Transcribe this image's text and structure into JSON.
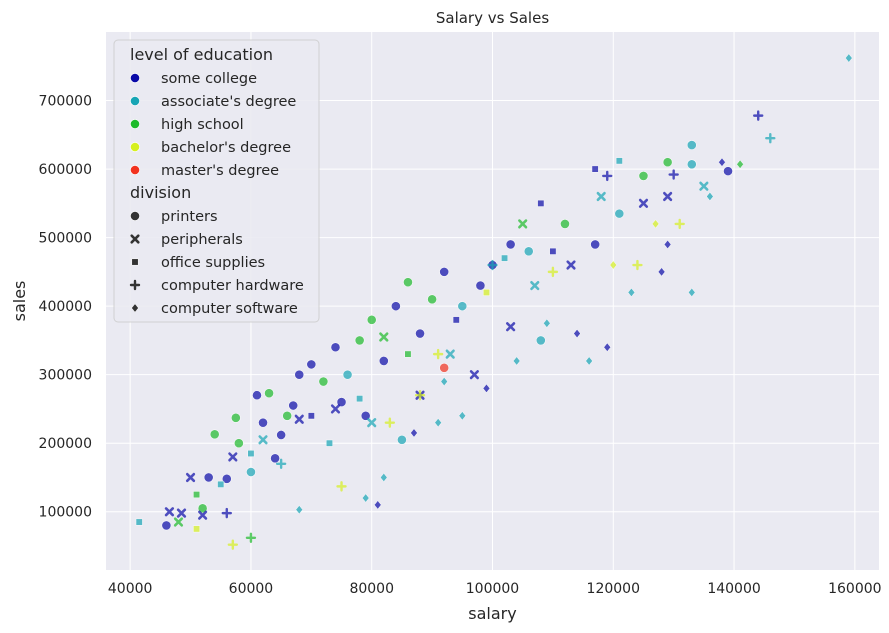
{
  "chart_data": {
    "type": "scatter",
    "title": "Salary vs Sales",
    "xlabel": "salary",
    "ylabel": "sales",
    "xlim": [
      36000,
      164000
    ],
    "ylim": [
      15000,
      800000
    ],
    "xticks": [
      40000,
      60000,
      80000,
      100000,
      120000,
      140000,
      160000
    ],
    "yticks": [
      100000,
      200000,
      300000,
      400000,
      500000,
      600000,
      700000
    ],
    "grid": true,
    "legend_placement": "top-left",
    "legend": {
      "hue_title": "level of education",
      "hue_entries": [
        {
          "label": "some college",
          "color": "#0a0aa8"
        },
        {
          "label": "associate's degree",
          "color": "#17a5b5"
        },
        {
          "label": "high school",
          "color": "#1dbb2a"
        },
        {
          "label": "bachelor's degree",
          "color": "#d6f01f"
        },
        {
          "label": "master's degree",
          "color": "#f2321f"
        }
      ],
      "style_title": "division",
      "style_entries": [
        {
          "label": "printers",
          "marker": "circle"
        },
        {
          "label": "peripherals",
          "marker": "x"
        },
        {
          "label": "office supplies",
          "marker": "square"
        },
        {
          "label": "computer hardware",
          "marker": "plus"
        },
        {
          "label": "computer software",
          "marker": "diamond"
        }
      ]
    },
    "points": [
      [
        46000,
        80000,
        "some college",
        "printers"
      ],
      [
        46500,
        100000,
        "some college",
        "peripherals"
      ],
      [
        41500,
        85000,
        "associate's degree",
        "office supplies"
      ],
      [
        48500,
        98000,
        "some college",
        "peripherals"
      ],
      [
        51000,
        75000,
        "bachelor's degree",
        "office supplies"
      ],
      [
        52000,
        105000,
        "high school",
        "printers"
      ],
      [
        53000,
        150000,
        "some college",
        "printers"
      ],
      [
        54000,
        213000,
        "high school",
        "printers"
      ],
      [
        56000,
        148000,
        "some college",
        "printers"
      ],
      [
        57500,
        237000,
        "high school",
        "printers"
      ],
      [
        58000,
        200000,
        "high school",
        "printers"
      ],
      [
        60000,
        158000,
        "associate's degree",
        "printers"
      ],
      [
        61000,
        270000,
        "some college",
        "printers"
      ],
      [
        63000,
        273000,
        "high school",
        "printers"
      ],
      [
        62000,
        230000,
        "some college",
        "printers"
      ],
      [
        65000,
        212000,
        "some college",
        "printers"
      ],
      [
        64000,
        178000,
        "some college",
        "printers"
      ],
      [
        67000,
        255000,
        "some college",
        "printers"
      ],
      [
        66000,
        240000,
        "high school",
        "printers"
      ],
      [
        68000,
        300000,
        "some college",
        "printers"
      ],
      [
        70000,
        315000,
        "some college",
        "printers"
      ],
      [
        72000,
        290000,
        "high school",
        "printers"
      ],
      [
        74000,
        340000,
        "some college",
        "printers"
      ],
      [
        75000,
        260000,
        "some college",
        "printers"
      ],
      [
        76000,
        300000,
        "associate's degree",
        "printers"
      ],
      [
        78000,
        350000,
        "high school",
        "printers"
      ],
      [
        80000,
        380000,
        "high school",
        "printers"
      ],
      [
        82000,
        320000,
        "some college",
        "printers"
      ],
      [
        84000,
        400000,
        "some college",
        "printers"
      ],
      [
        86000,
        435000,
        "high school",
        "printers"
      ],
      [
        88000,
        360000,
        "some college",
        "printers"
      ],
      [
        90000,
        410000,
        "high school",
        "printers"
      ],
      [
        92000,
        450000,
        "some college",
        "printers"
      ],
      [
        95000,
        400000,
        "associate's degree",
        "printers"
      ],
      [
        98000,
        430000,
        "some college",
        "printers"
      ],
      [
        100000,
        460000,
        "some college",
        "printers"
      ],
      [
        103000,
        490000,
        "some college",
        "printers"
      ],
      [
        106000,
        480000,
        "associate's degree",
        "printers"
      ],
      [
        108000,
        350000,
        "associate's degree",
        "printers"
      ],
      [
        112000,
        520000,
        "high school",
        "printers"
      ],
      [
        117000,
        490000,
        "some college",
        "printers"
      ],
      [
        121000,
        535000,
        "associate's degree",
        "printers"
      ],
      [
        125000,
        590000,
        "high school",
        "printers"
      ],
      [
        129000,
        610000,
        "high school",
        "printers"
      ],
      [
        133000,
        635000,
        "associate's degree",
        "printers"
      ],
      [
        139000,
        597000,
        "some college",
        "printers"
      ],
      [
        133000,
        607000,
        "associate's degree",
        "printers"
      ],
      [
        85000,
        205000,
        "associate's degree",
        "printers"
      ],
      [
        92000,
        310000,
        "master's degree",
        "printers"
      ],
      [
        79000,
        240000,
        "some college",
        "printers"
      ],
      [
        51000,
        125000,
        "high school",
        "office supplies"
      ],
      [
        55000,
        140000,
        "associate's degree",
        "office supplies"
      ],
      [
        60000,
        185000,
        "associate's degree",
        "office supplies"
      ],
      [
        70000,
        240000,
        "some college",
        "office supplies"
      ],
      [
        78000,
        265000,
        "associate's degree",
        "office supplies"
      ],
      [
        86000,
        330000,
        "high school",
        "office supplies"
      ],
      [
        94000,
        380000,
        "some college",
        "office supplies"
      ],
      [
        102000,
        470000,
        "associate's degree",
        "office supplies"
      ],
      [
        110000,
        480000,
        "some college",
        "office supplies"
      ],
      [
        117000,
        600000,
        "some college",
        "office supplies"
      ],
      [
        121000,
        612000,
        "associate's degree",
        "office supplies"
      ],
      [
        108000,
        550000,
        "some college",
        "office supplies"
      ],
      [
        73000,
        200000,
        "associate's degree",
        "office supplies"
      ],
      [
        99000,
        420000,
        "bachelor's degree",
        "office supplies"
      ],
      [
        50000,
        150000,
        "some college",
        "peripherals"
      ],
      [
        57000,
        180000,
        "some college",
        "peripherals"
      ],
      [
        62000,
        205000,
        "associate's degree",
        "peripherals"
      ],
      [
        68000,
        235000,
        "some college",
        "peripherals"
      ],
      [
        74000,
        250000,
        "some college",
        "peripherals"
      ],
      [
        80000,
        230000,
        "associate's degree",
        "peripherals"
      ],
      [
        88000,
        270000,
        "some college",
        "peripherals"
      ],
      [
        93000,
        330000,
        "associate's degree",
        "peripherals"
      ],
      [
        97000,
        300000,
        "some college",
        "peripherals"
      ],
      [
        103000,
        370000,
        "some college",
        "peripherals"
      ],
      [
        107000,
        430000,
        "associate's degree",
        "peripherals"
      ],
      [
        113000,
        460000,
        "some college",
        "peripherals"
      ],
      [
        118000,
        560000,
        "associate's degree",
        "peripherals"
      ],
      [
        125000,
        550000,
        "some college",
        "peripherals"
      ],
      [
        129000,
        560000,
        "some college",
        "peripherals"
      ],
      [
        135000,
        575000,
        "associate's degree",
        "peripherals"
      ],
      [
        82000,
        355000,
        "high school",
        "peripherals"
      ],
      [
        105000,
        520000,
        "high school",
        "peripherals"
      ],
      [
        48000,
        85000,
        "high school",
        "peripherals"
      ],
      [
        52000,
        95000,
        "some college",
        "peripherals"
      ],
      [
        60000,
        62000,
        "high school",
        "computer hardware"
      ],
      [
        57000,
        52000,
        "bachelor's degree",
        "computer hardware"
      ],
      [
        56000,
        98000,
        "some college",
        "computer hardware"
      ],
      [
        65000,
        170000,
        "associate's degree",
        "computer hardware"
      ],
      [
        75000,
        137000,
        "bachelor's degree",
        "computer hardware"
      ],
      [
        83000,
        230000,
        "bachelor's degree",
        "computer hardware"
      ],
      [
        91000,
        330000,
        "bachelor's degree",
        "computer hardware"
      ],
      [
        100000,
        460000,
        "associate's degree",
        "computer hardware"
      ],
      [
        110000,
        450000,
        "bachelor's degree",
        "computer hardware"
      ],
      [
        119000,
        590000,
        "some college",
        "computer hardware"
      ],
      [
        124000,
        460000,
        "bachelor's degree",
        "computer hardware"
      ],
      [
        131000,
        520000,
        "bachelor's degree",
        "computer hardware"
      ],
      [
        144000,
        678000,
        "some college",
        "computer hardware"
      ],
      [
        146000,
        645000,
        "associate's degree",
        "computer hardware"
      ],
      [
        130000,
        592000,
        "some college",
        "computer hardware"
      ],
      [
        88000,
        270000,
        "bachelor's degree",
        "computer hardware"
      ],
      [
        68000,
        103000,
        "associate's degree",
        "computer software"
      ],
      [
        79000,
        120000,
        "associate's degree",
        "computer software"
      ],
      [
        81000,
        110000,
        "some college",
        "computer software"
      ],
      [
        82000,
        150000,
        "associate's degree",
        "computer software"
      ],
      [
        87000,
        215000,
        "some college",
        "computer software"
      ],
      [
        91000,
        230000,
        "associate's degree",
        "computer software"
      ],
      [
        95000,
        240000,
        "associate's degree",
        "computer software"
      ],
      [
        99000,
        280000,
        "some college",
        "computer software"
      ],
      [
        104000,
        320000,
        "associate's degree",
        "computer software"
      ],
      [
        109000,
        375000,
        "associate's degree",
        "computer software"
      ],
      [
        114000,
        360000,
        "some college",
        "computer software"
      ],
      [
        116000,
        320000,
        "associate's degree",
        "computer software"
      ],
      [
        119000,
        340000,
        "some college",
        "computer software"
      ],
      [
        123000,
        420000,
        "associate's degree",
        "computer software"
      ],
      [
        128000,
        450000,
        "some college",
        "computer software"
      ],
      [
        127000,
        520000,
        "bachelor's degree",
        "computer software"
      ],
      [
        129000,
        490000,
        "some college",
        "computer software"
      ],
      [
        133000,
        420000,
        "associate's degree",
        "computer software"
      ],
      [
        136000,
        560000,
        "associate's degree",
        "computer software"
      ],
      [
        138000,
        610000,
        "some college",
        "computer software"
      ],
      [
        141000,
        607000,
        "high school",
        "computer software"
      ],
      [
        159000,
        762000,
        "associate's degree",
        "computer software"
      ],
      [
        120000,
        460000,
        "bachelor's degree",
        "computer software"
      ],
      [
        92000,
        290000,
        "associate's degree",
        "computer software"
      ]
    ]
  }
}
